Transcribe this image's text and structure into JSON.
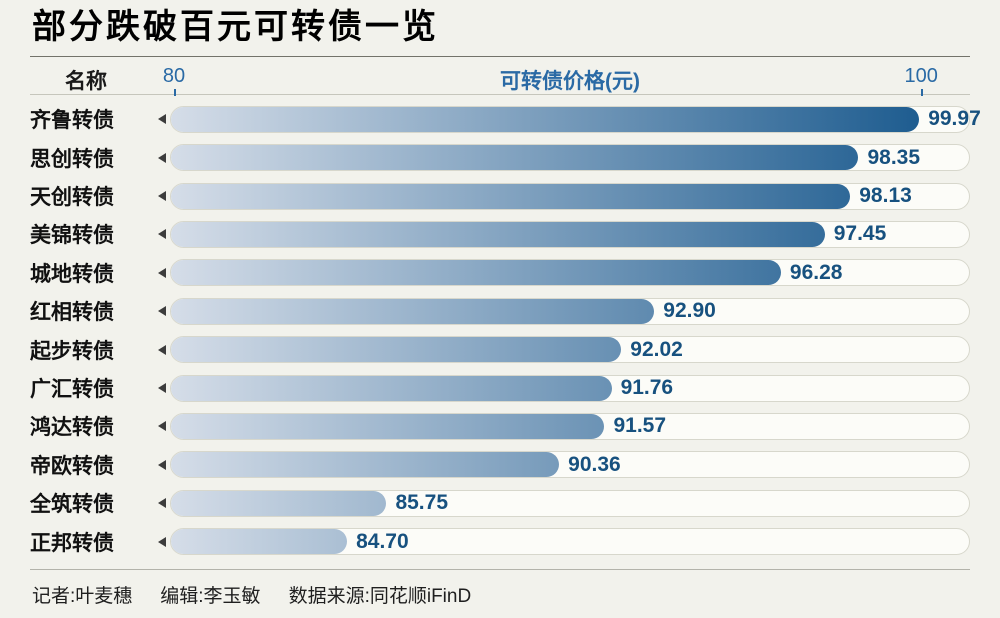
{
  "title": "部分跌破百元可转债一览",
  "header": {
    "name_column": "名称",
    "axis_title": "可转债价格(元)",
    "axis_min_label": "80",
    "axis_max_label": "100"
  },
  "chart_data": {
    "type": "bar",
    "orientation": "horizontal",
    "title": "部分跌破百元可转债一览",
    "xlabel": "可转债价格(元)",
    "ylabel": "名称",
    "xlim": [
      80,
      100
    ],
    "grid": false,
    "legend": false,
    "categories": [
      "齐鲁转债",
      "思创转债",
      "天创转债",
      "美锦转债",
      "城地转债",
      "红相转债",
      "起步转债",
      "广汇转债",
      "鸿达转债",
      "帝欧转债",
      "全筑转债",
      "正邦转债"
    ],
    "values": [
      99.97,
      98.35,
      98.13,
      97.45,
      96.28,
      92.9,
      92.02,
      91.76,
      91.57,
      90.36,
      85.75,
      84.7
    ],
    "value_labels": [
      "99.97",
      "98.35",
      "98.13",
      "97.45",
      "96.28",
      "92.90",
      "92.02",
      "91.76",
      "91.57",
      "90.36",
      "85.75",
      "84.70"
    ]
  },
  "footer": {
    "reporter": "记者:叶麦穗",
    "editor": "编辑:李玉敏",
    "source": "数据来源:同花顺iFinD"
  },
  "colors": {
    "background": "#f2f2ec",
    "accent_blue": "#2a6aa5",
    "value_text": "#17517f",
    "name_text": "#111111",
    "bar_gradient_start": "#d5dde8",
    "bar_gradient_end": "#12548a"
  }
}
